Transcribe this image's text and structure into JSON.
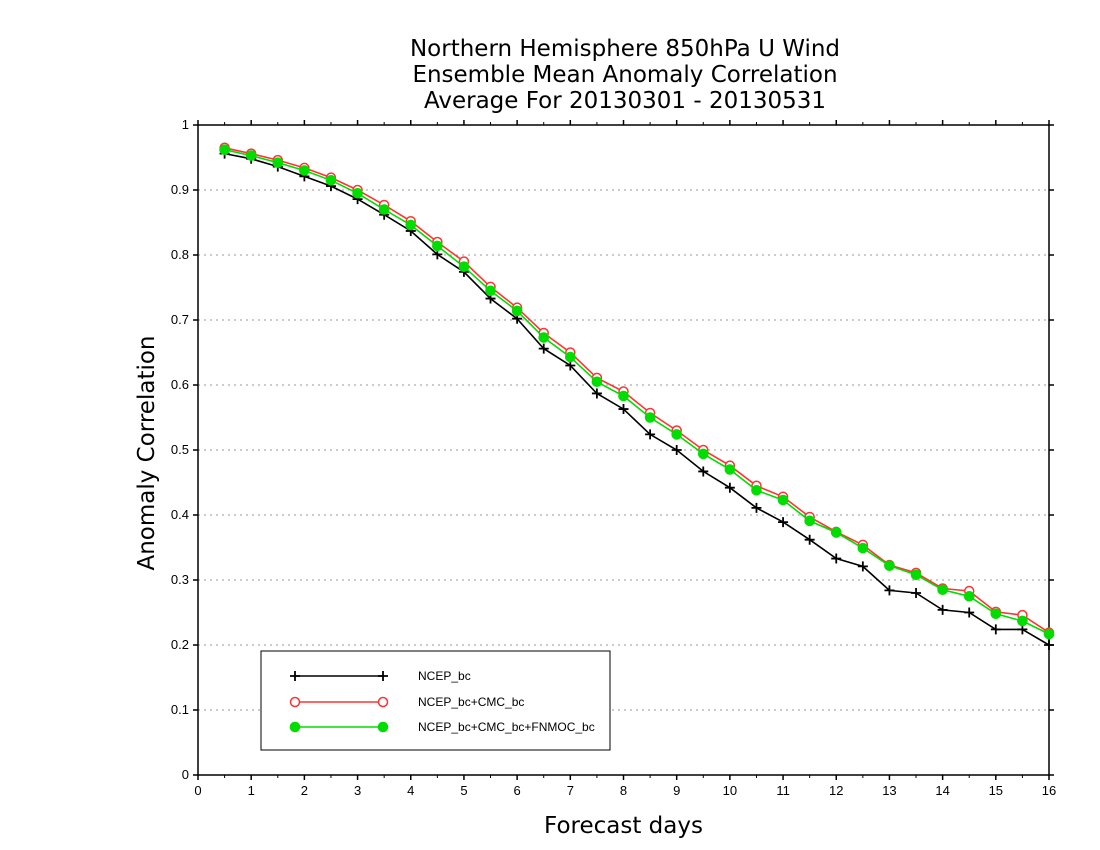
{
  "chart_data": {
    "type": "line",
    "title": [
      "Northern Hemisphere 850hPa U Wind",
      "Ensemble Mean Anomaly Correlation",
      "Average For 20130301 - 20130531"
    ],
    "xlabel": "Forecast days",
    "ylabel": "Anomaly Correlation",
    "xlim": [
      0,
      16
    ],
    "ylim": [
      0,
      1
    ],
    "x_ticks": [
      "0",
      "1",
      "2",
      "3",
      "4",
      "5",
      "6",
      "7",
      "8",
      "9",
      "10",
      "11",
      "12",
      "13",
      "14",
      "15",
      "16"
    ],
    "y_ticks": [
      "0",
      "0.1",
      "0.2",
      "0.3",
      "0.4",
      "0.5",
      "0.6",
      "0.7",
      "0.8",
      "0.9",
      "1"
    ],
    "grid": "horizontal dotted",
    "legend_position": "bottom-left",
    "x": [
      0.5,
      1,
      1.5,
      2,
      2.5,
      3,
      3.5,
      4,
      4.5,
      5,
      5.5,
      6,
      6.5,
      7,
      7.5,
      8,
      8.5,
      9,
      9.5,
      10,
      10.5,
      11,
      11.5,
      12,
      12.5,
      13,
      13.5,
      14,
      14.5,
      15,
      15.5,
      16
    ],
    "series": [
      {
        "name": "NCEP_bc",
        "color": "#000000",
        "marker": "plus",
        "values": [
          0.956,
          0.948,
          0.936,
          0.921,
          0.906,
          0.886,
          0.862,
          0.837,
          0.801,
          0.774,
          0.733,
          0.702,
          0.656,
          0.63,
          0.587,
          0.563,
          0.524,
          0.5,
          0.467,
          0.442,
          0.411,
          0.389,
          0.362,
          0.333,
          0.321,
          0.284,
          0.28,
          0.254,
          0.25,
          0.224,
          0.224,
          0.2
        ]
      },
      {
        "name": "NCEP_bc+CMC_bc",
        "color": "#ff3333",
        "marker": "open-circle",
        "values": [
          0.965,
          0.956,
          0.946,
          0.934,
          0.919,
          0.9,
          0.877,
          0.852,
          0.82,
          0.79,
          0.751,
          0.719,
          0.68,
          0.65,
          0.611,
          0.59,
          0.557,
          0.53,
          0.5,
          0.476,
          0.445,
          0.428,
          0.397,
          0.374,
          0.354,
          0.323,
          0.311,
          0.287,
          0.283,
          0.251,
          0.246,
          0.219
        ]
      },
      {
        "name": "NCEP_bc+CMC_bc+FNMOC_bc",
        "color": "#00dd00",
        "marker": "filled-circle",
        "values": [
          0.962,
          0.953,
          0.942,
          0.93,
          0.915,
          0.895,
          0.87,
          0.846,
          0.814,
          0.782,
          0.745,
          0.714,
          0.673,
          0.643,
          0.605,
          0.583,
          0.55,
          0.524,
          0.494,
          0.47,
          0.438,
          0.423,
          0.391,
          0.373,
          0.349,
          0.322,
          0.308,
          0.285,
          0.275,
          0.248,
          0.237,
          0.217
        ]
      }
    ]
  }
}
